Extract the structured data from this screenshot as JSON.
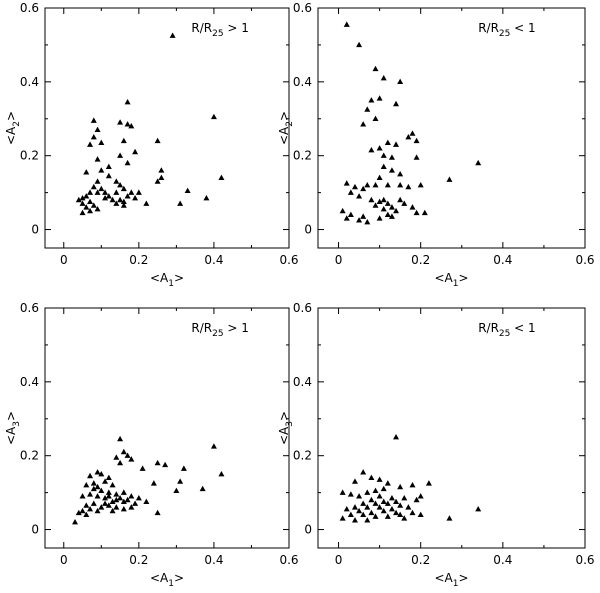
{
  "chart_data": [
    {
      "type": "scatter",
      "annotation": {
        "main": "R/R",
        "sub": "25",
        "rel": " > 1"
      },
      "xlabel": {
        "main": "<A",
        "sub": "1",
        "end": ">"
      },
      "ylabel": {
        "main": "<A",
        "sub": "2",
        "end": ">"
      },
      "xlim": [
        -0.05,
        0.6
      ],
      "ylim": [
        -0.05,
        0.6
      ],
      "xticks": [
        "0",
        "0.2",
        "0.4",
        "0.6"
      ],
      "yticks": [
        "0",
        "0.2",
        "0.4",
        "0.6"
      ],
      "grid": false,
      "marker": "triangle",
      "points": [
        [
          0.29,
          0.525
        ],
        [
          0.4,
          0.305
        ],
        [
          0.17,
          0.345
        ],
        [
          0.25,
          0.24
        ],
        [
          0.08,
          0.295
        ],
        [
          0.15,
          0.29
        ],
        [
          0.17,
          0.285
        ],
        [
          0.18,
          0.28
        ],
        [
          0.09,
          0.27
        ],
        [
          0.08,
          0.25
        ],
        [
          0.1,
          0.235
        ],
        [
          0.07,
          0.23
        ],
        [
          0.16,
          0.24
        ],
        [
          0.19,
          0.21
        ],
        [
          0.15,
          0.2
        ],
        [
          0.17,
          0.18
        ],
        [
          0.09,
          0.19
        ],
        [
          0.12,
          0.17
        ],
        [
          0.26,
          0.16
        ],
        [
          0.26,
          0.14
        ],
        [
          0.25,
          0.13
        ],
        [
          0.42,
          0.14
        ],
        [
          0.33,
          0.105
        ],
        [
          0.38,
          0.085
        ],
        [
          0.31,
          0.07
        ],
        [
          0.22,
          0.07
        ],
        [
          0.1,
          0.16
        ],
        [
          0.12,
          0.145
        ],
        [
          0.06,
          0.155
        ],
        [
          0.09,
          0.13
        ],
        [
          0.08,
          0.115
        ],
        [
          0.1,
          0.11
        ],
        [
          0.11,
          0.1
        ],
        [
          0.09,
          0.1
        ],
        [
          0.07,
          0.1
        ],
        [
          0.06,
          0.09
        ],
        [
          0.05,
          0.085
        ],
        [
          0.04,
          0.08
        ],
        [
          0.07,
          0.075
        ],
        [
          0.05,
          0.07
        ],
        [
          0.08,
          0.065
        ],
        [
          0.06,
          0.06
        ],
        [
          0.09,
          0.055
        ],
        [
          0.07,
          0.05
        ],
        [
          0.05,
          0.045
        ],
        [
          0.14,
          0.13
        ],
        [
          0.15,
          0.12
        ],
        [
          0.16,
          0.11
        ],
        [
          0.14,
          0.1
        ],
        [
          0.17,
          0.09
        ],
        [
          0.19,
          0.085
        ],
        [
          0.15,
          0.08
        ],
        [
          0.14,
          0.07
        ],
        [
          0.16,
          0.075
        ],
        [
          0.2,
          0.1
        ],
        [
          0.12,
          0.09
        ],
        [
          0.18,
          0.1
        ],
        [
          0.13,
          0.08
        ],
        [
          0.11,
          0.085
        ],
        [
          0.16,
          0.065
        ]
      ]
    },
    {
      "type": "scatter",
      "annotation": {
        "main": "R/R",
        "sub": "25",
        "rel": " < 1"
      },
      "xlabel": {
        "main": "<A",
        "sub": "1",
        "end": ">"
      },
      "ylabel": {
        "main": "<A",
        "sub": "2",
        "end": ">"
      },
      "xlim": [
        -0.05,
        0.6
      ],
      "ylim": [
        -0.05,
        0.6
      ],
      "xticks": [
        "0",
        "0.2",
        "0.4",
        "0.6"
      ],
      "yticks": [
        "0",
        "0.2",
        "0.4",
        "0.6"
      ],
      "grid": false,
      "marker": "triangle",
      "points": [
        [
          0.02,
          0.555
        ],
        [
          0.05,
          0.5
        ],
        [
          0.09,
          0.435
        ],
        [
          0.11,
          0.41
        ],
        [
          0.15,
          0.4
        ],
        [
          0.1,
          0.355
        ],
        [
          0.08,
          0.35
        ],
        [
          0.07,
          0.325
        ],
        [
          0.09,
          0.3
        ],
        [
          0.06,
          0.285
        ],
        [
          0.14,
          0.34
        ],
        [
          0.18,
          0.26
        ],
        [
          0.17,
          0.25
        ],
        [
          0.19,
          0.24
        ],
        [
          0.12,
          0.235
        ],
        [
          0.14,
          0.23
        ],
        [
          0.1,
          0.22
        ],
        [
          0.08,
          0.215
        ],
        [
          0.11,
          0.2
        ],
        [
          0.13,
          0.195
        ],
        [
          0.19,
          0.195
        ],
        [
          0.34,
          0.18
        ],
        [
          0.11,
          0.17
        ],
        [
          0.13,
          0.16
        ],
        [
          0.15,
          0.15
        ],
        [
          0.1,
          0.14
        ],
        [
          0.27,
          0.135
        ],
        [
          0.02,
          0.125
        ],
        [
          0.09,
          0.12
        ],
        [
          0.07,
          0.12
        ],
        [
          0.04,
          0.115
        ],
        [
          0.06,
          0.11
        ],
        [
          0.12,
          0.12
        ],
        [
          0.15,
          0.12
        ],
        [
          0.17,
          0.115
        ],
        [
          0.2,
          0.12
        ],
        [
          0.03,
          0.1
        ],
        [
          0.05,
          0.09
        ],
        [
          0.08,
          0.08
        ],
        [
          0.1,
          0.075
        ],
        [
          0.11,
          0.08
        ],
        [
          0.12,
          0.07
        ],
        [
          0.09,
          0.065
        ],
        [
          0.13,
          0.06
        ],
        [
          0.11,
          0.055
        ],
        [
          0.14,
          0.05
        ],
        [
          0.16,
          0.07
        ],
        [
          0.18,
          0.06
        ],
        [
          0.19,
          0.045
        ],
        [
          0.21,
          0.045
        ],
        [
          0.01,
          0.05
        ],
        [
          0.03,
          0.04
        ],
        [
          0.06,
          0.035
        ],
        [
          0.02,
          0.03
        ],
        [
          0.05,
          0.025
        ],
        [
          0.07,
          0.02
        ],
        [
          0.1,
          0.03
        ],
        [
          0.12,
          0.04
        ],
        [
          0.13,
          0.035
        ],
        [
          0.15,
          0.08
        ]
      ]
    },
    {
      "type": "scatter",
      "annotation": {
        "main": "R/R",
        "sub": "25",
        "rel": " > 1"
      },
      "xlabel": {
        "main": "<A",
        "sub": "1",
        "end": ">"
      },
      "ylabel": {
        "main": "<A",
        "sub": "3",
        "end": ">"
      },
      "xlim": [
        -0.05,
        0.6
      ],
      "ylim": [
        -0.05,
        0.6
      ],
      "xticks": [
        "0",
        "0.2",
        "0.4",
        "0.6"
      ],
      "yticks": [
        "0",
        "0.2",
        "0.4",
        "0.6"
      ],
      "grid": false,
      "marker": "triangle",
      "points": [
        [
          0.15,
          0.245
        ],
        [
          0.4,
          0.225
        ],
        [
          0.16,
          0.21
        ],
        [
          0.17,
          0.2
        ],
        [
          0.14,
          0.195
        ],
        [
          0.18,
          0.19
        ],
        [
          0.15,
          0.18
        ],
        [
          0.25,
          0.18
        ],
        [
          0.27,
          0.175
        ],
        [
          0.32,
          0.165
        ],
        [
          0.21,
          0.165
        ],
        [
          0.42,
          0.15
        ],
        [
          0.09,
          0.155
        ],
        [
          0.1,
          0.15
        ],
        [
          0.07,
          0.145
        ],
        [
          0.12,
          0.14
        ],
        [
          0.11,
          0.13
        ],
        [
          0.08,
          0.125
        ],
        [
          0.06,
          0.12
        ],
        [
          0.13,
          0.12
        ],
        [
          0.09,
          0.115
        ],
        [
          0.31,
          0.13
        ],
        [
          0.37,
          0.11
        ],
        [
          0.3,
          0.105
        ],
        [
          0.24,
          0.125
        ],
        [
          0.08,
          0.11
        ],
        [
          0.1,
          0.105
        ],
        [
          0.12,
          0.1
        ],
        [
          0.07,
          0.095
        ],
        [
          0.05,
          0.09
        ],
        [
          0.09,
          0.09
        ],
        [
          0.14,
          0.095
        ],
        [
          0.16,
          0.1
        ],
        [
          0.18,
          0.09
        ],
        [
          0.2,
          0.085
        ],
        [
          0.22,
          0.075
        ],
        [
          0.15,
          0.085
        ],
        [
          0.17,
          0.08
        ],
        [
          0.13,
          0.075
        ],
        [
          0.11,
          0.07
        ],
        [
          0.08,
          0.07
        ],
        [
          0.06,
          0.065
        ],
        [
          0.07,
          0.055
        ],
        [
          0.09,
          0.05
        ],
        [
          0.05,
          0.05
        ],
        [
          0.04,
          0.045
        ],
        [
          0.06,
          0.04
        ],
        [
          0.03,
          0.02
        ],
        [
          0.25,
          0.045
        ],
        [
          0.1,
          0.06
        ],
        [
          0.12,
          0.065
        ],
        [
          0.14,
          0.06
        ],
        [
          0.16,
          0.055
        ],
        [
          0.13,
          0.05
        ],
        [
          0.18,
          0.06
        ],
        [
          0.19,
          0.07
        ],
        [
          0.11,
          0.085
        ],
        [
          0.12,
          0.09
        ],
        [
          0.14,
          0.08
        ],
        [
          0.16,
          0.075
        ]
      ]
    },
    {
      "type": "scatter",
      "annotation": {
        "main": "R/R",
        "sub": "25",
        "rel": " < 1"
      },
      "xlabel": {
        "main": "<A",
        "sub": "1",
        "end": ">"
      },
      "ylabel": {
        "main": "<A",
        "sub": "3",
        "end": ">"
      },
      "xlim": [
        -0.05,
        0.6
      ],
      "ylim": [
        -0.05,
        0.6
      ],
      "xticks": [
        "0",
        "0.2",
        "0.4",
        "0.6"
      ],
      "yticks": [
        "0",
        "0.2",
        "0.4",
        "0.6"
      ],
      "grid": false,
      "marker": "triangle",
      "points": [
        [
          0.14,
          0.25
        ],
        [
          0.06,
          0.155
        ],
        [
          0.08,
          0.14
        ],
        [
          0.1,
          0.135
        ],
        [
          0.04,
          0.13
        ],
        [
          0.12,
          0.125
        ],
        [
          0.22,
          0.125
        ],
        [
          0.18,
          0.12
        ],
        [
          0.15,
          0.115
        ],
        [
          0.11,
          0.11
        ],
        [
          0.09,
          0.105
        ],
        [
          0.07,
          0.1
        ],
        [
          0.01,
          0.1
        ],
        [
          0.03,
          0.095
        ],
        [
          0.05,
          0.09
        ],
        [
          0.1,
          0.09
        ],
        [
          0.13,
          0.085
        ],
        [
          0.16,
          0.085
        ],
        [
          0.2,
          0.09
        ],
        [
          0.19,
          0.08
        ],
        [
          0.08,
          0.08
        ],
        [
          0.11,
          0.075
        ],
        [
          0.14,
          0.075
        ],
        [
          0.12,
          0.07
        ],
        [
          0.09,
          0.07
        ],
        [
          0.06,
          0.07
        ],
        [
          0.15,
          0.065
        ],
        [
          0.17,
          0.06
        ],
        [
          0.1,
          0.06
        ],
        [
          0.13,
          0.055
        ],
        [
          0.07,
          0.06
        ],
        [
          0.04,
          0.06
        ],
        [
          0.02,
          0.055
        ],
        [
          0.05,
          0.05
        ],
        [
          0.11,
          0.05
        ],
        [
          0.14,
          0.045
        ],
        [
          0.18,
          0.045
        ],
        [
          0.2,
          0.04
        ],
        [
          0.08,
          0.045
        ],
        [
          0.06,
          0.04
        ],
        [
          0.03,
          0.04
        ],
        [
          0.09,
          0.035
        ],
        [
          0.12,
          0.035
        ],
        [
          0.16,
          0.03
        ],
        [
          0.01,
          0.03
        ],
        [
          0.04,
          0.025
        ],
        [
          0.07,
          0.025
        ],
        [
          0.27,
          0.03
        ],
        [
          0.34,
          0.055
        ],
        [
          0.15,
          0.04
        ]
      ]
    }
  ]
}
